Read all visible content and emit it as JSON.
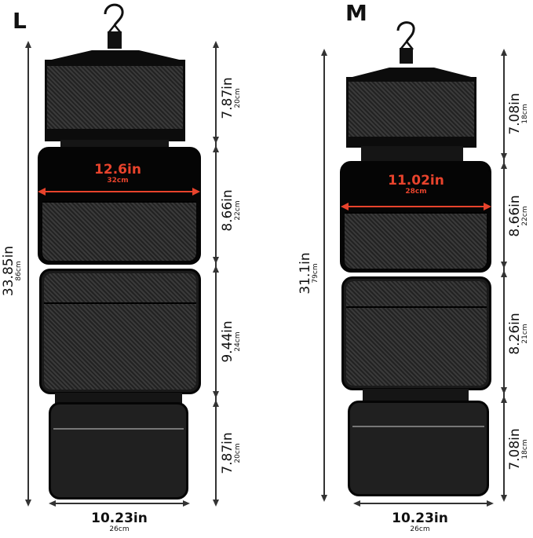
{
  "bags": [
    {
      "size": "L",
      "total_length": {
        "in": "33.85in",
        "cm": "86cm"
      },
      "inner_width": {
        "in": "12.6in",
        "cm": "32cm"
      },
      "bottom_width": {
        "in": "10.23in",
        "cm": "26cm"
      },
      "sections": [
        {
          "in": "7.87in",
          "cm": "20cm"
        },
        {
          "in": "8.66in",
          "cm": "22cm"
        },
        {
          "in": "9.44in",
          "cm": "24cm"
        },
        {
          "in": "7.87in",
          "cm": "20cm"
        }
      ]
    },
    {
      "size": "M",
      "total_length": {
        "in": "31.1in",
        "cm": "79cm"
      },
      "inner_width": {
        "in": "11.02in",
        "cm": "28cm"
      },
      "bottom_width": {
        "in": "10.23in",
        "cm": "26cm"
      },
      "sections": [
        {
          "in": "7.08in",
          "cm": "18cm"
        },
        {
          "in": "8.66in",
          "cm": "22cm"
        },
        {
          "in": "8.26in",
          "cm": "21cm"
        },
        {
          "in": "7.08in",
          "cm": "18cm"
        }
      ]
    }
  ],
  "colors": {
    "accent": "#e8432c",
    "bag": "#111111",
    "dimension_lines": "#333333"
  }
}
